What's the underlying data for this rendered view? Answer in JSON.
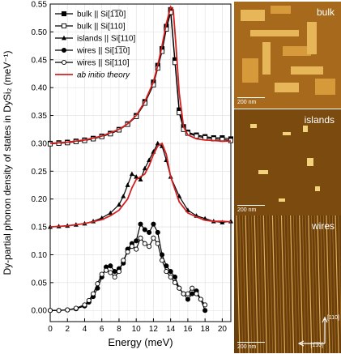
{
  "chart_data": {
    "type": "line",
    "ylabel": "Dy-partial phonon density of states in DySi₂ (meV⁻¹)",
    "xlabel": "Energy (meV)",
    "xlim": [
      0,
      21
    ],
    "ylim": [
      -0.02,
      0.55
    ],
    "x_ticks": [
      0,
      2,
      4,
      6,
      8,
      10,
      12,
      14,
      16,
      18,
      20
    ],
    "y_ticks": [
      0.0,
      0.05,
      0.1,
      0.15,
      0.2,
      0.25,
      0.3,
      0.35,
      0.4,
      0.45,
      0.5,
      0.55
    ],
    "y_tick_labels": [
      "0.00",
      "0.05",
      "0.10",
      "0.15",
      "0.20",
      "0.25",
      "0.30",
      "0.35",
      "0.40",
      "0.45",
      "0.50",
      "0.55"
    ],
    "grid": true,
    "legend_position": "top-left",
    "series": [
      {
        "name": "bulk || Si[1̅1̅0]",
        "marker": "square-filled",
        "color": "#000000",
        "x": [
          0,
          1,
          2,
          3,
          4,
          5,
          6,
          7,
          8,
          9,
          10,
          11,
          12,
          12.5,
          13,
          13.5,
          14,
          14.5,
          15,
          15.5,
          16,
          17,
          18,
          19,
          20,
          21
        ],
        "y": [
          0.3,
          0.301,
          0.302,
          0.304,
          0.306,
          0.309,
          0.313,
          0.318,
          0.325,
          0.335,
          0.35,
          0.375,
          0.41,
          0.44,
          0.47,
          0.51,
          0.54,
          0.45,
          0.36,
          0.33,
          0.32,
          0.315,
          0.312,
          0.31,
          0.31,
          0.308
        ]
      },
      {
        "name": "bulk || Si[110]",
        "marker": "square-open",
        "color": "#000000",
        "x": [
          0,
          1,
          2,
          3,
          4,
          5,
          6,
          7,
          8,
          9,
          10,
          11,
          12,
          12.5,
          13,
          13.5,
          14,
          14.5,
          15,
          15.5,
          16,
          17,
          18,
          19,
          20,
          21
        ],
        "y": [
          0.299,
          0.3,
          0.301,
          0.303,
          0.305,
          0.308,
          0.312,
          0.317,
          0.324,
          0.334,
          0.348,
          0.372,
          0.405,
          0.435,
          0.465,
          0.505,
          0.535,
          0.445,
          0.355,
          0.325,
          0.318,
          0.313,
          0.31,
          0.308,
          0.307,
          0.305
        ]
      },
      {
        "name": "islands || Si[110]",
        "marker": "triangle-filled",
        "color": "#000000",
        "x": [
          0,
          1,
          2,
          3,
          4,
          5,
          6,
          7,
          8,
          8.5,
          9,
          9.5,
          10,
          10.5,
          11,
          11.5,
          12,
          12.5,
          13,
          13.5,
          14,
          15,
          16,
          17,
          18,
          19,
          20,
          21
        ],
        "y": [
          0.15,
          0.151,
          0.152,
          0.154,
          0.156,
          0.16,
          0.166,
          0.175,
          0.19,
          0.205,
          0.225,
          0.245,
          0.24,
          0.235,
          0.255,
          0.27,
          0.285,
          0.3,
          0.295,
          0.27,
          0.24,
          0.205,
          0.18,
          0.17,
          0.165,
          0.16,
          0.158,
          0.16
        ]
      },
      {
        "name": "wires || Si[1̅1̅0]",
        "marker": "circle-filled",
        "color": "#000000",
        "x": [
          0,
          1,
          2,
          3,
          4,
          4.5,
          5,
          5.5,
          6,
          6.5,
          7,
          7.5,
          8,
          8.5,
          9,
          9.5,
          10,
          10.5,
          11,
          11.5,
          12,
          12.5,
          13,
          13.5,
          14,
          14.5,
          15,
          15.5,
          16,
          16.5,
          17,
          17.5,
          18
        ],
        "y": [
          0.0,
          0.0,
          0.001,
          0.003,
          0.008,
          0.015,
          0.025,
          0.04,
          0.06,
          0.078,
          0.08,
          0.07,
          0.075,
          0.085,
          0.11,
          0.12,
          0.125,
          0.155,
          0.145,
          0.14,
          0.155,
          0.14,
          0.1,
          0.08,
          0.07,
          0.06,
          0.04,
          0.03,
          0.02,
          0.03,
          0.035,
          0.02,
          0.0
        ]
      },
      {
        "name": "wires || Si[110]",
        "marker": "circle-open",
        "color": "#000000",
        "x": [
          0,
          1,
          2,
          3,
          4,
          4.5,
          5,
          5.5,
          6,
          6.5,
          7,
          7.5,
          8,
          8.5,
          9,
          9.5,
          10,
          10.5,
          11,
          11.5,
          12,
          12.5,
          13,
          13.5,
          14,
          14.5,
          15,
          15.5,
          16,
          16.5,
          17,
          17.5,
          18
        ],
        "y": [
          0.0,
          0.0,
          0.001,
          0.004,
          0.01,
          0.018,
          0.03,
          0.048,
          0.065,
          0.072,
          0.068,
          0.06,
          0.07,
          0.09,
          0.105,
          0.115,
          0.11,
          0.13,
          0.12,
          0.115,
          0.13,
          0.12,
          0.09,
          0.07,
          0.06,
          0.05,
          0.04,
          0.03,
          0.03,
          0.04,
          0.03,
          0.02,
          0.01
        ]
      },
      {
        "name": "ab initio theory",
        "marker": "none",
        "color": "#d41f1f",
        "x": [
          0,
          2,
          4,
          6,
          8,
          9,
          10,
          11,
          12,
          12.5,
          13,
          13.5,
          14,
          14.3,
          14.6,
          15,
          15.5,
          16,
          17,
          18,
          19,
          20,
          21
        ],
        "y": [
          0.3,
          0.302,
          0.306,
          0.313,
          0.325,
          0.335,
          0.35,
          0.375,
          0.41,
          0.44,
          0.475,
          0.515,
          0.545,
          0.54,
          0.48,
          0.39,
          0.33,
          0.315,
          0.308,
          0.306,
          0.305,
          0.304,
          0.304
        ]
      },
      {
        "name": "",
        "marker": "none",
        "color": "#d41f1f",
        "x": [
          0,
          2,
          4,
          6,
          7,
          8,
          9,
          9.5,
          10,
          10.5,
          11,
          11.5,
          12,
          12.5,
          13,
          13.5,
          14,
          15,
          16,
          17,
          18,
          19,
          20,
          21
        ],
        "y": [
          0.15,
          0.152,
          0.156,
          0.163,
          0.17,
          0.18,
          0.2,
          0.22,
          0.235,
          0.24,
          0.245,
          0.26,
          0.28,
          0.295,
          0.3,
          0.28,
          0.24,
          0.195,
          0.175,
          0.168,
          0.162,
          0.16,
          0.16,
          0.159
        ]
      }
    ]
  },
  "legend_labels": [
    "bulk || Si[1̅1̅0]",
    "bulk || Si[110]",
    "islands || Si[110]",
    "wires || Si[1̅1̅0]",
    "wires || Si[110]",
    "ab initio theory"
  ],
  "panels": {
    "bulk": {
      "label": "bulk",
      "scale": "200 nm"
    },
    "islands": {
      "label": "islands",
      "scale": "200 nm"
    },
    "wires": {
      "label": "wires",
      "scale": "200 nm",
      "dir_vertical": "[110]",
      "dir_horizontal": "[1̅1̅0]"
    }
  }
}
